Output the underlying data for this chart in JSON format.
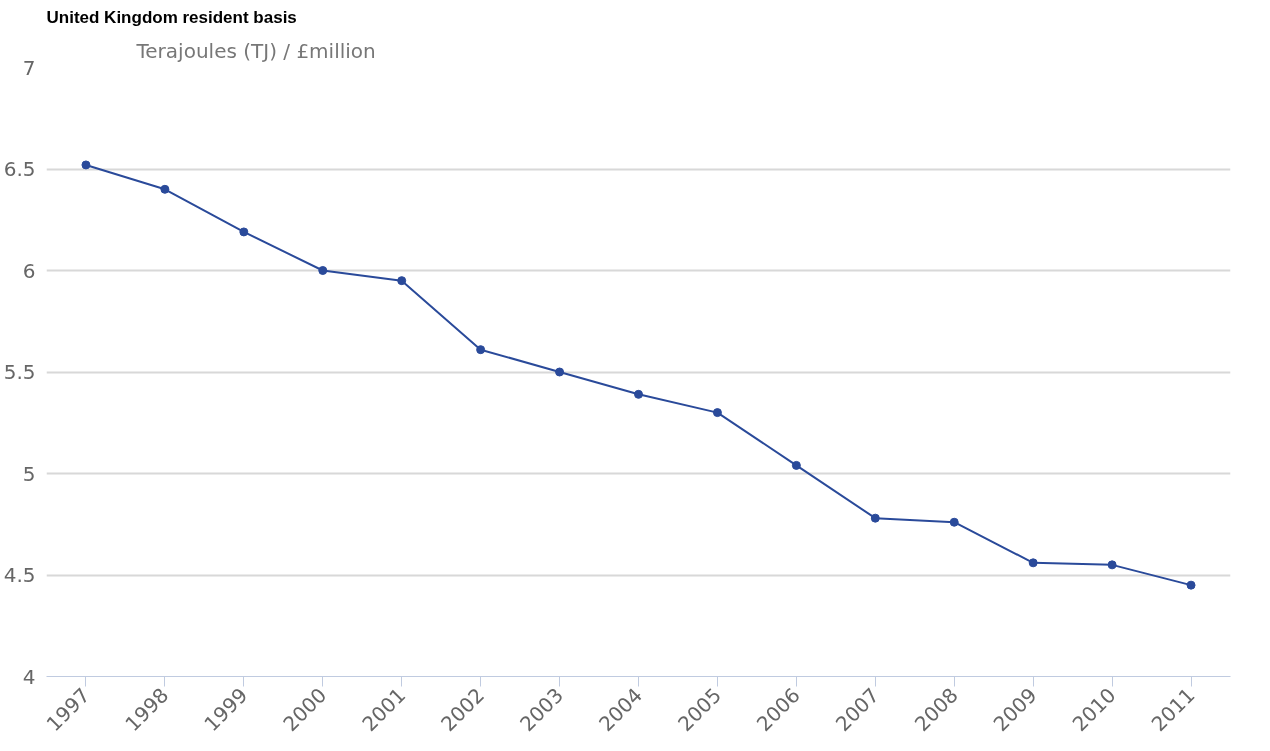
{
  "chart_data": {
    "type": "line",
    "title": "United Kingdom resident basis",
    "ylabel": "Terajoules (TJ) / £million",
    "categories": [
      "1997",
      "1998",
      "1999",
      "2000",
      "2001",
      "2002",
      "2003",
      "2004",
      "2005",
      "2006",
      "2007",
      "2008",
      "2009",
      "2010",
      "2011"
    ],
    "series": [
      {
        "color": "#2a4a9a",
        "values": [
          6.52,
          6.4,
          6.19,
          6.0,
          5.95,
          5.61,
          5.5,
          5.39,
          5.3,
          5.04,
          4.78,
          4.76,
          4.56,
          4.55,
          4.45
        ]
      }
    ],
    "ylim": [
      4,
      7
    ],
    "yticks": [
      4,
      4.5,
      5,
      5.5,
      6,
      6.5,
      7
    ],
    "grid": "y",
    "marker": "circle",
    "line_style": "solid"
  }
}
